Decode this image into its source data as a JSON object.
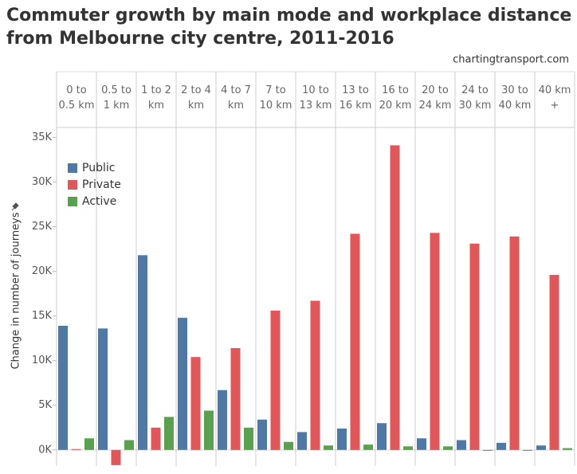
{
  "chart_data": {
    "type": "bar",
    "title": "Commuter growth by main mode and workplace distance from Melbourne city centre, 2011-2016",
    "source": "chartingtransport.com",
    "y_label": "Change in number of journeys",
    "categories": [
      "0 to 0.5 km",
      "0.5 to 1 km",
      "1 to 2 km",
      "2 to 4 km",
      "4 to 7 km",
      "7 to 10 km",
      "10 to 13 km",
      "13 to 16 km",
      "16 to 20 km",
      "20 to 24 km",
      "24 to 30 km",
      "30 to 40 km",
      "40 km +"
    ],
    "series": [
      {
        "name": "Public",
        "color": "#4e79a7",
        "values": [
          13900,
          13600,
          21800,
          14800,
          6700,
          3400,
          2000,
          2400,
          3000,
          1300,
          1100,
          800,
          500
        ]
      },
      {
        "name": "Private",
        "color": "#e15759",
        "values": [
          100,
          -1700,
          2500,
          10400,
          11400,
          15600,
          16700,
          24200,
          34100,
          24300,
          23100,
          23900,
          19600
        ]
      },
      {
        "name": "Active",
        "color": "#59a14f",
        "values": [
          1300,
          1100,
          3700,
          4400,
          2500,
          900,
          500,
          600,
          400,
          400,
          -100,
          -100,
          200
        ]
      }
    ],
    "ylim": [
      -1800,
      36100
    ],
    "yticks": [
      {
        "value": 0,
        "label": "0K"
      },
      {
        "value": 5000,
        "label": "5K"
      },
      {
        "value": 10000,
        "label": "10K"
      },
      {
        "value": 15000,
        "label": "15K"
      },
      {
        "value": 20000,
        "label": "20K"
      },
      {
        "value": 25000,
        "label": "25K"
      },
      {
        "value": 30000,
        "label": "30K"
      },
      {
        "value": 35000,
        "label": "35K"
      }
    ],
    "legend": "top-left"
  }
}
